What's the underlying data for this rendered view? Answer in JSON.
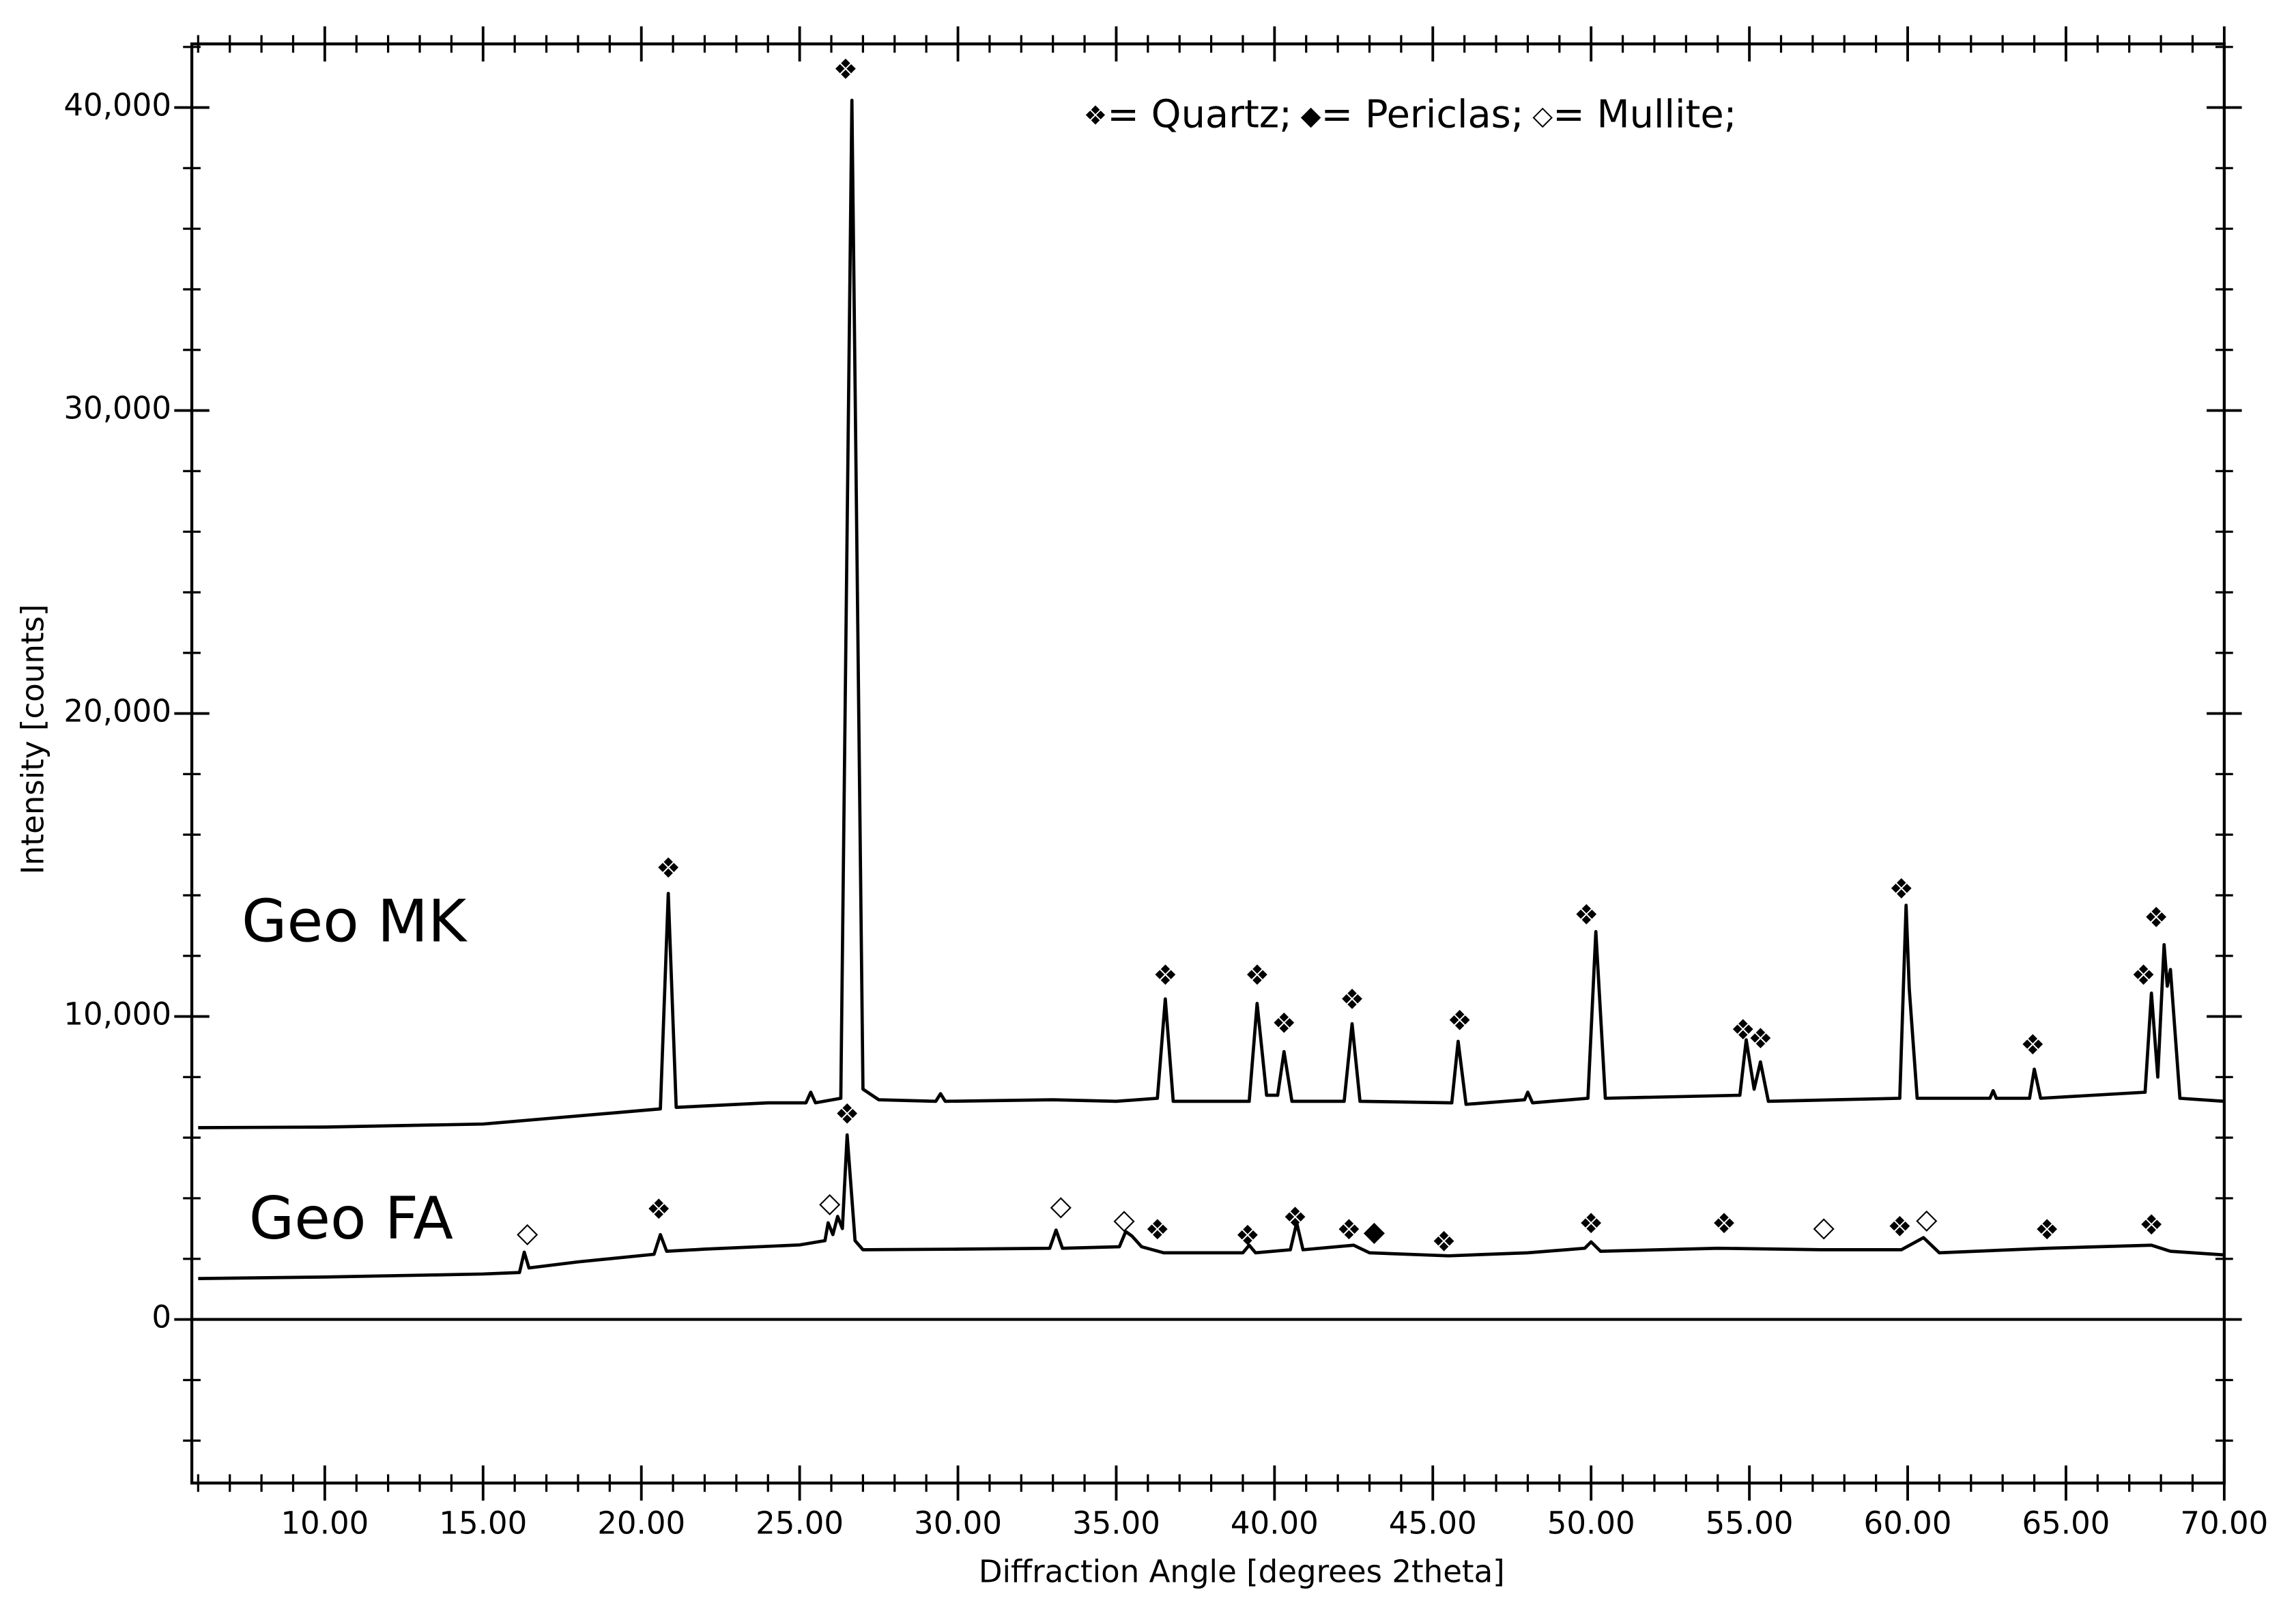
{
  "chart_data": {
    "type": "line",
    "xlabel": "Diffraction Angle [degrees 2theta]",
    "ylabel": "Intensity [counts]",
    "xlim": [
      5.8,
      70
    ],
    "ylim": [
      -5400,
      42100
    ],
    "xticks": [
      {
        "value": 10,
        "label": "10.00"
      },
      {
        "value": 15,
        "label": "15.00"
      },
      {
        "value": 20,
        "label": "20.00"
      },
      {
        "value": 25,
        "label": "25.00"
      },
      {
        "value": 30,
        "label": "30.00"
      },
      {
        "value": 35,
        "label": "35.00"
      },
      {
        "value": 40,
        "label": "40.00"
      },
      {
        "value": 45,
        "label": "45.00"
      },
      {
        "value": 50,
        "label": "50.00"
      },
      {
        "value": 55,
        "label": "55.00"
      },
      {
        "value": 60,
        "label": "60.00"
      },
      {
        "value": 65,
        "label": "65.00"
      },
      {
        "value": 70,
        "label": "70.00"
      }
    ],
    "yticks": [
      0,
      {
        "value": 10000,
        "label": "10,000"
      },
      {
        "value": 20000,
        "label": "20,000"
      },
      {
        "value": 30000,
        "label": "30,000"
      },
      {
        "value": 40000,
        "label": "40,000"
      }
    ],
    "phases": [
      {
        "symbol": "❖",
        "label": "= Quartz;"
      },
      {
        "symbol": "◆",
        "label": "= Periclas;"
      },
      {
        "symbol": "◇",
        "label": "= Mullite;"
      }
    ],
    "series": [
      {
        "name": "Geo MK",
        "color": "#000000",
        "x": [
          6,
          10,
          15,
          19.5,
          20.6,
          20.85,
          21.1,
          24,
          25.2,
          25.35,
          25.5,
          26.3,
          26.65,
          27.0,
          27.5,
          29.3,
          29.45,
          29.6,
          33,
          35,
          36.3,
          36.55,
          36.8,
          39.2,
          39.45,
          39.75,
          40.1,
          40.3,
          40.55,
          42.2,
          42.45,
          42.7,
          45.6,
          45.8,
          46.05,
          47.9,
          48,
          48.15,
          49.9,
          50.15,
          50.45,
          54.7,
          54.9,
          55.15,
          55.35,
          55.6,
          59.75,
          59.95,
          60.05,
          60.3,
          62.6,
          62.7,
          62.8,
          63.85,
          64.0,
          64.2,
          67.5,
          67.7,
          67.9,
          68.1,
          68.2,
          68.3,
          68.6,
          70
        ],
        "values": [
          6330,
          6350,
          6450,
          6850,
          6950,
          14060,
          7000,
          7150,
          7150,
          7500,
          7150,
          7300,
          40240,
          7600,
          7250,
          7200,
          7450,
          7200,
          7250,
          7200,
          7300,
          10580,
          7200,
          7200,
          10430,
          7400,
          7400,
          8840,
          7200,
          7200,
          9760,
          7200,
          7150,
          9180,
          7100,
          7250,
          7500,
          7150,
          7300,
          12800,
          7300,
          7400,
          9230,
          7600,
          8500,
          7200,
          7300,
          13670,
          10920,
          7300,
          7300,
          7550,
          7300,
          7300,
          8260,
          7300,
          7500,
          10770,
          8000,
          12370,
          11000,
          11550,
          7300,
          7200
        ]
      },
      {
        "name": "Geo FA",
        "color": "#000000",
        "x": [
          6,
          10,
          15,
          16.15,
          16.3,
          16.45,
          18,
          20.4,
          20.6,
          20.8,
          22,
          25,
          25.8,
          25.9,
          26.05,
          26.2,
          26.35,
          26.5,
          26.75,
          27,
          30,
          32.9,
          33.1,
          33.3,
          35.1,
          35.3,
          35.5,
          35.8,
          36.5,
          39,
          39.2,
          39.4,
          40.5,
          40.7,
          40.9,
          42.5,
          43,
          45.5,
          48,
          49.8,
          50.0,
          50.3,
          54,
          57.3,
          59.8,
          60.5,
          61,
          64.4,
          67.7,
          68.3,
          70
        ],
        "values": [
          1350,
          1400,
          1500,
          1550,
          2220,
          1700,
          1900,
          2150,
          2800,
          2250,
          2320,
          2460,
          2600,
          3190,
          2800,
          3400,
          3000,
          6090,
          2600,
          2300,
          2320,
          2350,
          2950,
          2350,
          2400,
          2900,
          2750,
          2400,
          2200,
          2200,
          2450,
          2200,
          2300,
          3190,
          2300,
          2450,
          2200,
          2100,
          2200,
          2350,
          2560,
          2250,
          2350,
          2300,
          2300,
          2700,
          2200,
          2350,
          2450,
          2250,
          2130
        ]
      }
    ],
    "markers": [
      {
        "x": 26.45,
        "y": 41200,
        "symbol": "❖"
      },
      {
        "x": 20.85,
        "y": 14830,
        "symbol": "❖"
      },
      {
        "x": 36.55,
        "y": 11300,
        "symbol": "❖"
      },
      {
        "x": 39.45,
        "y": 11300,
        "symbol": "❖"
      },
      {
        "x": 40.3,
        "y": 9710,
        "symbol": "❖"
      },
      {
        "x": 42.45,
        "y": 10500,
        "symbol": "❖"
      },
      {
        "x": 45.85,
        "y": 9800,
        "symbol": "❖"
      },
      {
        "x": 49.85,
        "y": 13290,
        "symbol": "❖"
      },
      {
        "x": 54.8,
        "y": 9500,
        "symbol": "❖"
      },
      {
        "x": 55.35,
        "y": 9200,
        "symbol": "❖"
      },
      {
        "x": 59.8,
        "y": 14150,
        "symbol": "❖"
      },
      {
        "x": 63.95,
        "y": 9000,
        "symbol": "❖"
      },
      {
        "x": 67.45,
        "y": 11300,
        "symbol": "❖"
      },
      {
        "x": 67.85,
        "y": 13200,
        "symbol": "❖"
      },
      {
        "x": 16.4,
        "y": 2800,
        "symbol": "◇"
      },
      {
        "x": 20.55,
        "y": 3570,
        "symbol": "❖"
      },
      {
        "x": 25.95,
        "y": 3800,
        "symbol": "◇"
      },
      {
        "x": 26.5,
        "y": 6710,
        "symbol": "❖"
      },
      {
        "x": 33.25,
        "y": 3700,
        "symbol": "◇"
      },
      {
        "x": 35.25,
        "y": 3240,
        "symbol": "◇"
      },
      {
        "x": 36.3,
        "y": 2900,
        "symbol": "❖"
      },
      {
        "x": 39.15,
        "y": 2700,
        "symbol": "❖"
      },
      {
        "x": 40.65,
        "y": 3300,
        "symbol": "❖"
      },
      {
        "x": 42.35,
        "y": 2900,
        "symbol": "❖"
      },
      {
        "x": 43.15,
        "y": 2850,
        "symbol": "◆"
      },
      {
        "x": 45.35,
        "y": 2500,
        "symbol": "❖"
      },
      {
        "x": 50.0,
        "y": 3100,
        "symbol": "❖"
      },
      {
        "x": 54.2,
        "y": 3100,
        "symbol": "❖"
      },
      {
        "x": 57.35,
        "y": 3000,
        "symbol": "◇"
      },
      {
        "x": 59.75,
        "y": 3000,
        "symbol": "❖"
      },
      {
        "x": 60.6,
        "y": 3250,
        "symbol": "◇"
      },
      {
        "x": 64.4,
        "y": 2900,
        "symbol": "❖"
      },
      {
        "x": 67.7,
        "y": 3050,
        "symbol": "❖"
      }
    ]
  }
}
